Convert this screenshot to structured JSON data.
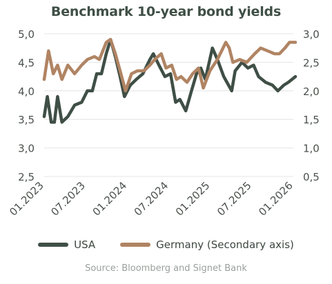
{
  "chart_data": {
    "type": "line",
    "title": "Benchmark 10-year bond yields",
    "source": "Source: Bloomberg and Signet Bank",
    "colors": {
      "USA": "#3f4f46",
      "Germany": "#b08463",
      "grid": "#e4e4e4"
    },
    "x_ticks": [
      "01.2023",
      "07.2023",
      "01.2024",
      "07.2024",
      "01.2025",
      "07.2025",
      "01.2026"
    ],
    "y_left": {
      "ylim": [
        2.5,
        5.0
      ],
      "ticks": [
        "2,5",
        "3,0",
        "3,5",
        "4,0",
        "4,5",
        "5,0"
      ]
    },
    "y_right": {
      "ylim": [
        0.5,
        3.0
      ],
      "ticks": [
        "0,5",
        "1,0",
        "1,5",
        "2,0",
        "2,5",
        "3,0"
      ]
    },
    "grid": true,
    "legend_position": "bottom",
    "series": [
      {
        "name": "USA",
        "axis": "left",
        "points": [
          [
            "2023-01-01",
            3.55
          ],
          [
            "2023-01-15",
            3.9
          ],
          [
            "2023-02-01",
            3.45
          ],
          [
            "2023-02-15",
            3.45
          ],
          [
            "2023-03-01",
            3.9
          ],
          [
            "2023-03-20",
            3.45
          ],
          [
            "2023-04-15",
            3.55
          ],
          [
            "2023-05-15",
            3.75
          ],
          [
            "2023-06-15",
            3.8
          ],
          [
            "2023-07-10",
            4.0
          ],
          [
            "2023-08-01",
            4.0
          ],
          [
            "2023-08-20",
            4.3
          ],
          [
            "2023-09-10",
            4.3
          ],
          [
            "2023-10-01",
            4.65
          ],
          [
            "2023-10-20",
            4.9
          ],
          [
            "2023-11-10",
            4.6
          ],
          [
            "2023-12-01",
            4.25
          ],
          [
            "2023-12-20",
            3.9
          ],
          [
            "2024-01-15",
            4.1
          ],
          [
            "2024-02-10",
            4.2
          ],
          [
            "2024-03-10",
            4.3
          ],
          [
            "2024-04-10",
            4.55
          ],
          [
            "2024-04-25",
            4.65
          ],
          [
            "2024-05-20",
            4.45
          ],
          [
            "2024-06-15",
            4.25
          ],
          [
            "2024-07-10",
            4.3
          ],
          [
            "2024-08-01",
            3.8
          ],
          [
            "2024-08-20",
            3.85
          ],
          [
            "2024-09-15",
            3.65
          ],
          [
            "2024-10-10",
            4.0
          ],
          [
            "2024-11-01",
            4.3
          ],
          [
            "2024-11-20",
            4.4
          ],
          [
            "2024-12-10",
            4.2
          ],
          [
            "2025-01-10",
            4.75
          ],
          [
            "2025-02-01",
            4.55
          ],
          [
            "2025-03-01",
            4.25
          ],
          [
            "2025-04-05",
            4.0
          ],
          [
            "2025-04-20",
            4.35
          ],
          [
            "2025-05-20",
            4.5
          ],
          [
            "2025-06-15",
            4.4
          ],
          [
            "2025-07-10",
            4.45
          ],
          [
            "2025-08-01",
            4.25
          ],
          [
            "2025-09-01",
            4.15
          ],
          [
            "2025-10-01",
            4.1
          ],
          [
            "2025-10-25",
            4.0
          ],
          [
            "2025-11-20",
            4.1
          ],
          [
            "2025-12-10",
            4.15
          ],
          [
            "2026-01-10",
            4.25
          ]
        ]
      },
      {
        "name": "Germany",
        "axis": "right",
        "points": [
          [
            "2023-01-01",
            2.2
          ],
          [
            "2023-01-20",
            2.7
          ],
          [
            "2023-02-10",
            2.3
          ],
          [
            "2023-03-01",
            2.45
          ],
          [
            "2023-03-20",
            2.2
          ],
          [
            "2023-04-15",
            2.45
          ],
          [
            "2023-05-15",
            2.3
          ],
          [
            "2023-06-15",
            2.45
          ],
          [
            "2023-07-10",
            2.55
          ],
          [
            "2023-08-10",
            2.6
          ],
          [
            "2023-09-01",
            2.55
          ],
          [
            "2023-10-01",
            2.85
          ],
          [
            "2023-10-20",
            2.9
          ],
          [
            "2023-11-10",
            2.65
          ],
          [
            "2023-12-01",
            2.35
          ],
          [
            "2023-12-25",
            2.0
          ],
          [
            "2024-01-20",
            2.3
          ],
          [
            "2024-02-15",
            2.35
          ],
          [
            "2024-03-15",
            2.35
          ],
          [
            "2024-04-10",
            2.45
          ],
          [
            "2024-05-01",
            2.55
          ],
          [
            "2024-05-30",
            2.65
          ],
          [
            "2024-06-20",
            2.4
          ],
          [
            "2024-07-15",
            2.45
          ],
          [
            "2024-08-05",
            2.2
          ],
          [
            "2024-08-25",
            2.25
          ],
          [
            "2024-09-20",
            2.15
          ],
          [
            "2024-10-15",
            2.3
          ],
          [
            "2024-11-10",
            2.4
          ],
          [
            "2024-12-01",
            2.05
          ],
          [
            "2024-12-30",
            2.35
          ],
          [
            "2025-02-01",
            2.55
          ],
          [
            "2025-03-10",
            2.85
          ],
          [
            "2025-03-25",
            2.75
          ],
          [
            "2025-04-10",
            2.5
          ],
          [
            "2025-05-10",
            2.55
          ],
          [
            "2025-06-10",
            2.5
          ],
          [
            "2025-07-15",
            2.65
          ],
          [
            "2025-08-10",
            2.75
          ],
          [
            "2025-09-10",
            2.7
          ],
          [
            "2025-10-10",
            2.65
          ],
          [
            "2025-11-01",
            2.65
          ],
          [
            "2025-11-25",
            2.75
          ],
          [
            "2025-12-15",
            2.85
          ],
          [
            "2026-01-10",
            2.85
          ]
        ]
      }
    ]
  }
}
